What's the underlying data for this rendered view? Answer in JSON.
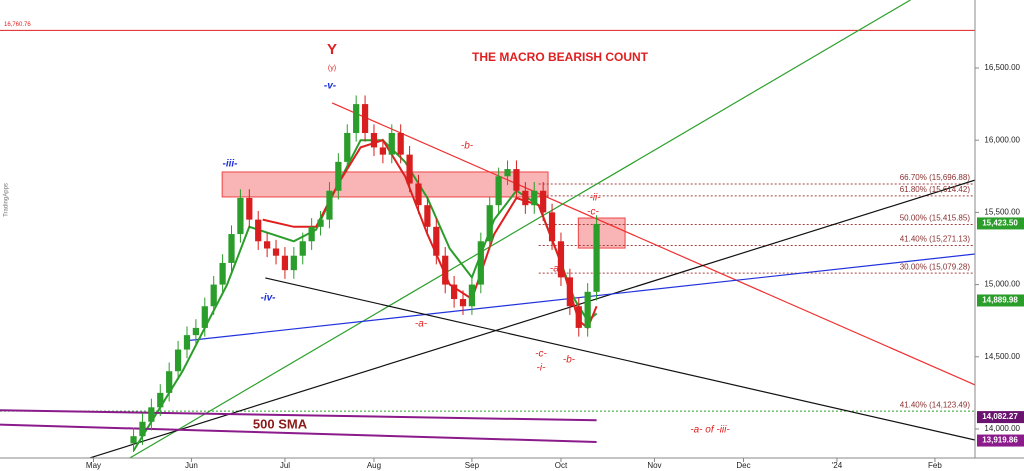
{
  "chart_data": {
    "type": "candlestick",
    "title": "THE MACRO BEARISH COUNT",
    "watermark": "TradingApps",
    "annotations": [
      "Y",
      "(y)",
      "-v-",
      "-iii-",
      "-iv-",
      "-b-",
      "-ii-",
      "-c-",
      "-a-",
      "-a-",
      "-c-",
      "-i-",
      "-b-",
      "-a- of -iii-"
    ],
    "sma_label": "500 SMA",
    "xlim": [
      -21,
      198
    ],
    "ylim": [
      13799,
      16971
    ],
    "xticks": [
      {
        "value": 0,
        "label": "May"
      },
      {
        "value": 22,
        "label": "Jun"
      },
      {
        "value": 43,
        "label": "Jul"
      },
      {
        "value": 63,
        "label": "Aug"
      },
      {
        "value": 85,
        "label": "Sep"
      },
      {
        "value": 105,
        "label": "Oct"
      },
      {
        "value": 126,
        "label": "Nov"
      },
      {
        "value": 146,
        "label": "Dec"
      },
      {
        "value": 167,
        "label": "'24"
      },
      {
        "value": 189,
        "label": "Feb"
      }
    ],
    "yticks": [
      {
        "value": 16500,
        "label": "16,500.00"
      },
      {
        "value": 16000,
        "label": "16,000.00"
      },
      {
        "value": 15500,
        "label": "15,500.00"
      },
      {
        "value": 15000,
        "label": "15,000.00"
      },
      {
        "value": 14500,
        "label": "14,500.00"
      },
      {
        "value": 14000,
        "label": "14,000.00"
      }
    ],
    "up_color": "#2a9d2a",
    "down_color": "#d81e1e",
    "x": [
      9,
      11,
      13,
      15,
      17,
      19,
      21,
      23,
      25,
      27,
      29,
      31,
      33,
      35,
      37,
      39,
      41,
      43,
      45,
      47,
      49,
      51,
      53,
      55,
      57,
      59,
      61,
      63,
      65,
      67,
      69,
      71,
      73,
      75,
      77,
      79,
      81,
      83,
      85,
      87,
      89,
      91,
      93,
      95,
      97,
      99,
      101,
      103,
      105,
      107,
      109,
      111,
      113
    ],
    "open": [
      13900,
      13950,
      14050,
      14150,
      14250,
      14400,
      14550,
      14650,
      14700,
      14850,
      15000,
      15150,
      15350,
      15600,
      15450,
      15300,
      15250,
      15200,
      15100,
      15200,
      15300,
      15400,
      15450,
      15650,
      15850,
      16050,
      16250,
      16050,
      15950,
      15900,
      16050,
      15900,
      15700,
      15550,
      15400,
      15200,
      15000,
      14900,
      14850,
      15000,
      15300,
      15550,
      15750,
      15800,
      15650,
      15550,
      15650,
      15500,
      15300,
      15050,
      14850,
      14700,
      14950
    ],
    "high": [
      14010,
      14110,
      14210,
      14310,
      14460,
      14610,
      14710,
      14760,
      14910,
      15060,
      15210,
      15410,
      15660,
      15660,
      15510,
      15360,
      15310,
      15260,
      15260,
      15360,
      15460,
      15510,
      15710,
      15910,
      16110,
      16310,
      16310,
      16110,
      16010,
      16110,
      16110,
      15960,
      15760,
      15610,
      15460,
      15260,
      15060,
      14960,
      15060,
      15360,
      15610,
      15810,
      15860,
      15860,
      15710,
      15710,
      15710,
      15560,
      15360,
      15110,
      14910,
      15010,
      15480
    ],
    "low": [
      13840,
      13890,
      13990,
      14090,
      14190,
      14340,
      14490,
      14590,
      14640,
      14790,
      14940,
      15090,
      15290,
      15390,
      15240,
      15190,
      15140,
      15040,
      15040,
      15140,
      15240,
      15340,
      15390,
      15590,
      15790,
      15990,
      15990,
      15890,
      15840,
      15840,
      15840,
      15640,
      15490,
      15340,
      15140,
      14940,
      14840,
      14790,
      14790,
      14940,
      15240,
      15490,
      15690,
      15590,
      15490,
      15490,
      15440,
      15240,
      14990,
      14790,
      14640,
      14640,
      14890
    ],
    "close": [
      13950,
      14050,
      14150,
      14250,
      14400,
      14550,
      14650,
      14700,
      14850,
      15000,
      15150,
      15350,
      15600,
      15450,
      15300,
      15250,
      15200,
      15100,
      15200,
      15300,
      15400,
      15450,
      15650,
      15850,
      16050,
      16250,
      16050,
      15950,
      15900,
      16050,
      15900,
      15700,
      15550,
      15400,
      15200,
      15000,
      14900,
      14850,
      15000,
      15300,
      15550,
      15750,
      15800,
      15650,
      15550,
      15650,
      15500,
      15300,
      15050,
      14850,
      14700,
      14950,
      15420
    ],
    "overlays": [
      {
        "color": "#2a9d2a",
        "width": 2,
        "x": [
          9,
          20,
          30,
          35,
          40,
          45,
          50,
          55,
          60,
          65,
          70,
          75,
          80,
          85,
          90,
          95,
          100,
          105,
          108,
          111,
          113
        ],
        "values": [
          13850,
          14400,
          15000,
          15400,
          15350,
          15300,
          15380,
          15700,
          16000,
          16000,
          15850,
          15600,
          15250,
          15050,
          15450,
          15650,
          15550,
          15150,
          14900,
          14750,
          14800
        ]
      },
      {
        "color": "#e02020",
        "width": 2,
        "x": [
          38,
          45,
          50,
          55,
          60,
          65,
          70,
          75,
          80,
          85,
          90,
          95,
          100,
          105,
          109,
          111,
          113
        ],
        "values": [
          15450,
          15400,
          15400,
          15700,
          15950,
          16000,
          15750,
          15350,
          15000,
          14900,
          15350,
          15600,
          15550,
          15150,
          14750,
          14700,
          14850
        ]
      },
      {
        "color": "#8b1a8b",
        "width": 2,
        "x": [
          -21,
          113
        ],
        "values": [
          14130,
          14060
        ]
      },
      {
        "color": "#8b1a8b",
        "width": 2,
        "x": [
          -21,
          113
        ],
        "values": [
          14030,
          13910
        ]
      }
    ],
    "trendlines": [
      {
        "color": "#f03030",
        "x": [
          53.6,
          198
        ],
        "values": [
          16258,
          14305
        ]
      },
      {
        "color": "#2ca02c",
        "x": [
          8.2,
          183.5
        ],
        "values": [
          13800,
          16971
        ]
      },
      {
        "color": "#111111",
        "x": [
          -0.8,
          198
        ],
        "values": [
          13800,
          15724
        ]
      },
      {
        "color": "#2233dd",
        "x": [
          20.6,
          198
        ],
        "values": [
          14610,
          15212
        ]
      },
      {
        "color": "#111111",
        "x": [
          38.6,
          198
        ],
        "values": [
          15046,
          13924
        ]
      }
    ],
    "zones": [
      {
        "x": [
          28.9,
          102.1
        ],
        "y": [
          15607,
          15780
        ]
      },
      {
        "x": [
          108.9,
          119.4
        ],
        "y": [
          15253,
          15461
        ]
      }
    ],
    "levels": [
      {
        "value": 16760.76,
        "label": "16,760.76",
        "color": "#e02020",
        "x": [
          -21,
          198
        ],
        "label_align": "left"
      },
      {
        "value": 15696.88,
        "label": "66.70% (15,696.88)",
        "color": "#a04040",
        "x": [
          100,
          198
        ],
        "label_align": "right"
      },
      {
        "value": 15614.42,
        "label": "61.80% (15,614.42)",
        "color": "#a04040",
        "x": [
          100,
          198
        ],
        "label_align": "right"
      },
      {
        "value": 15415.85,
        "label": "50.00% (15,415.85)",
        "color": "#a04040",
        "x": [
          100,
          198
        ],
        "label_align": "right"
      },
      {
        "value": 15271.13,
        "label": "41.40% (15,271.13)",
        "color": "#a04040",
        "x": [
          100,
          198
        ],
        "label_align": "right"
      },
      {
        "value": 15079.28,
        "label": "30.00% (15,079.28)",
        "color": "#a04040",
        "x": [
          100,
          198
        ],
        "label_align": "right"
      },
      {
        "value": 14123.49,
        "label": "41.40% (14,123.49)",
        "color": "#2a9d2a",
        "x": [
          -21,
          198
        ],
        "label_align": "right"
      }
    ],
    "price_tags": [
      {
        "value": 15423.5,
        "label": "15,423.50",
        "color": "#2a9d2a"
      },
      {
        "value": 14889.98,
        "label": "14,889.98",
        "color": "#2a9d2a"
      },
      {
        "value": 14082.27,
        "label": "14,082.27",
        "color": "#6a1470"
      },
      {
        "value": 13919.86,
        "label": "13,919.86",
        "color": "#8b1a8b"
      }
    ]
  }
}
